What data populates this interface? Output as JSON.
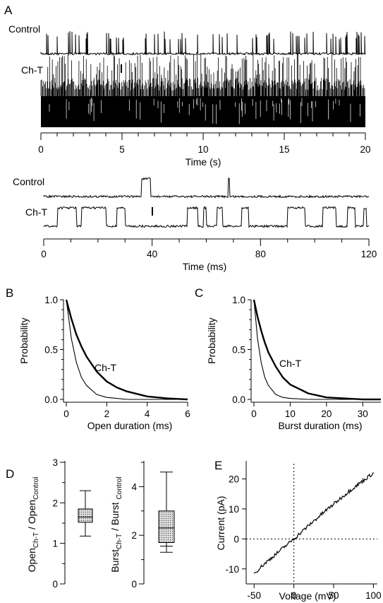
{
  "chart_data": [
    {
      "panel": "A",
      "type": "line",
      "subtype": "single-channel current traces",
      "traces": [
        "Control",
        "Ch-T"
      ],
      "xlabel": "Time (s)",
      "xlim": [
        0,
        20
      ],
      "xticks": [
        "0",
        "5",
        "10",
        "15",
        "20"
      ]
    },
    {
      "panel": "A",
      "type": "line",
      "subtype": "single-channel current traces (expanded)",
      "traces": [
        "Control",
        "Ch-T"
      ],
      "xlabel": "Time (ms)",
      "xlim": [
        0,
        120
      ],
      "xticks": [
        "0",
        "40",
        "80",
        "120"
      ],
      "control_openings_ms": [
        [
          36,
          39.5
        ],
        [
          68,
          68.7
        ]
      ],
      "cht_openings_ms": [
        [
          5,
          12
        ],
        [
          14,
          23
        ],
        [
          27,
          30
        ],
        [
          53,
          57
        ],
        [
          59,
          60
        ],
        [
          64,
          66
        ],
        [
          73,
          75.5
        ],
        [
          90,
          96.5
        ],
        [
          103,
          108
        ],
        [
          112,
          115
        ],
        [
          118,
          119
        ]
      ]
    },
    {
      "panel": "B",
      "type": "line",
      "xlabel": "Open duration (ms)",
      "ylabel": "Probability",
      "xlim": [
        0,
        6
      ],
      "ylim": [
        0,
        1
      ],
      "xticks": [
        "0",
        "2",
        "4",
        "6"
      ],
      "yticks": [
        "0.0",
        "0.5",
        "1.0"
      ],
      "series": [
        {
          "name": "",
          "x": [
            0,
            0.25,
            0.5,
            0.75,
            1,
            1.5,
            2,
            2.5,
            3,
            4,
            5,
            6
          ],
          "values": [
            1,
            0.61,
            0.37,
            0.22,
            0.14,
            0.05,
            0.02,
            0.01,
            0,
            0,
            0,
            0
          ]
        },
        {
          "name": "Ch-T",
          "x": [
            0,
            0.25,
            0.5,
            0.75,
            1,
            1.5,
            2,
            2.5,
            3,
            4,
            5,
            6
          ],
          "values": [
            1,
            0.81,
            0.65,
            0.53,
            0.43,
            0.28,
            0.18,
            0.12,
            0.08,
            0.03,
            0.01,
            0
          ]
        }
      ],
      "annotation": "Ch-T"
    },
    {
      "panel": "C",
      "type": "line",
      "xlabel": "Burst duration (ms)",
      "ylabel": "Probability",
      "xlim": [
        0,
        35
      ],
      "ylim": [
        0,
        1
      ],
      "xticks": [
        "0",
        "10",
        "20",
        "30"
      ],
      "yticks": [
        "0.0",
        "0.5",
        "1.0"
      ],
      "series": [
        {
          "name": "",
          "x": [
            0,
            1,
            2,
            3,
            4,
            6,
            8,
            10,
            15,
            20,
            30,
            35
          ],
          "values": [
            1,
            0.61,
            0.37,
            0.22,
            0.14,
            0.05,
            0.02,
            0.01,
            0,
            0,
            0,
            0
          ]
        },
        {
          "name": "Ch-T",
          "x": [
            0,
            1,
            2,
            3,
            4,
            6,
            8,
            10,
            15,
            20,
            30,
            35
          ],
          "values": [
            1,
            0.83,
            0.69,
            0.57,
            0.47,
            0.33,
            0.22,
            0.15,
            0.06,
            0.02,
            0,
            0
          ]
        }
      ],
      "annotation": "Ch-T"
    },
    {
      "panel": "D",
      "type": "box",
      "ylabel": "Open_Ch-T / Open_Control",
      "ylim": [
        0,
        3
      ],
      "yticks": [
        "0",
        "1",
        "2",
        "3"
      ],
      "box": {
        "min": 1.18,
        "q1": 1.52,
        "median": 1.65,
        "q3": 1.85,
        "max": 2.3
      }
    },
    {
      "panel": "D",
      "type": "box",
      "ylabel": "Burst_Ch-T / Burst_Control",
      "ylim": [
        0,
        5
      ],
      "yticks": [
        "0",
        "2",
        "4"
      ],
      "box": {
        "min": 1.3,
        "p10": 1.55,
        "q1": 1.7,
        "median": 2.3,
        "q3": 3.0,
        "max": 4.6
      }
    },
    {
      "panel": "E",
      "type": "line",
      "xlabel": "Voltage (mV)",
      "ylabel": "Current (pA)",
      "xlim": [
        -60,
        105
      ],
      "ylim": [
        -15,
        26
      ],
      "xticks": [
        "-50",
        "0",
        "50",
        "100"
      ],
      "yticks": [
        "-10",
        "0",
        "10",
        "20"
      ],
      "series": [
        {
          "name": "",
          "x": [
            -50,
            -40,
            -30,
            -20,
            -10,
            0,
            10,
            20,
            30,
            40,
            50,
            60,
            70,
            80,
            90,
            100
          ],
          "values": [
            -11.5,
            -9,
            -6.7,
            -4.5,
            -2.2,
            0,
            2.4,
            4.8,
            7.1,
            9.4,
            11.6,
            13.8,
            16,
            18,
            20,
            22
          ]
        }
      ]
    }
  ],
  "panels": {
    "a": {
      "letter": "A",
      "trace1_label": "Control",
      "trace2_label": "Ch-T",
      "trace3_label": "Control",
      "trace4_label": "Ch-T",
      "xlabel_top": "Time (s)",
      "xlabel_bottom": "Time (ms)"
    },
    "b": {
      "letter": "B",
      "ylabel": "Probability",
      "xlabel": "Open duration (ms)",
      "annotation": "Ch-T"
    },
    "c": {
      "letter": "C",
      "ylabel": "Probability",
      "xlabel": "Burst duration (ms)",
      "annotation": "Ch-T"
    },
    "d": {
      "letter": "D",
      "ylabel1_main": "Open",
      "ylabel1_sub": "Ch-T",
      "ylabel1_div": " / Open",
      "ylabel1_sub2": "Control",
      "ylabel2_main": "Burst",
      "ylabel2_sub": "Ch-T",
      "ylabel2_div": " / Burst ",
      "ylabel2_sub2": "Control"
    },
    "e": {
      "letter": "E",
      "ylabel": "Current (pA)",
      "xlabel": "Voltage (mV)"
    }
  },
  "colors": {
    "ink": "#000000",
    "box_fill": "#c8c8c8"
  }
}
